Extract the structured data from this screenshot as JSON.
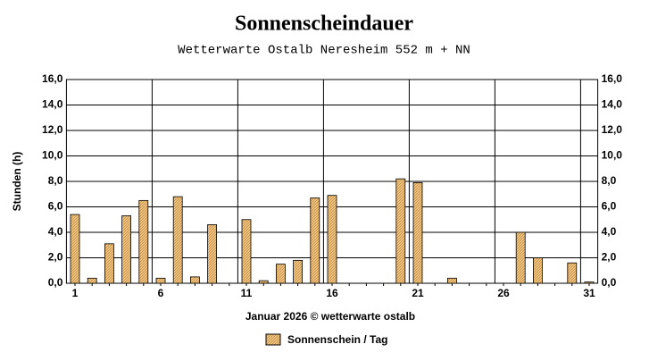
{
  "chart_data": {
    "type": "bar",
    "title": "Sonnenscheindauer",
    "subtitle": "Wetterwarte Ostalb Neresheim 552 m + NN",
    "y_label": "Stunden  (h)",
    "x_label": "Januar 2026   © wetterwarte ostalb",
    "categories": [
      "1",
      null,
      null,
      null,
      null,
      "6",
      null,
      null,
      null,
      null,
      "11",
      null,
      null,
      null,
      null,
      "16",
      null,
      null,
      null,
      null,
      "21",
      null,
      null,
      null,
      null,
      "26",
      null,
      null,
      null,
      null,
      "31"
    ],
    "series": [
      {
        "name": "Sonnenschein / Tag",
        "color": "#f5c77e",
        "values": [
          5.4,
          0.4,
          3.1,
          5.3,
          6.5,
          0.4,
          6.8,
          0.5,
          4.6,
          0,
          5.0,
          0.2,
          1.5,
          1.8,
          6.7,
          6.9,
          0,
          0,
          0,
          8.2,
          7.9,
          0,
          0.4,
          0,
          0,
          0,
          4.0,
          2.0,
          0,
          1.6,
          0.1
        ]
      }
    ],
    "ylim": [
      0,
      16
    ],
    "yticks": [
      {
        "value": 0,
        "label": "0,0"
      },
      {
        "value": 2,
        "label": "2,0"
      },
      {
        "value": 4,
        "label": "4,0"
      },
      {
        "value": 6,
        "label": "6,0"
      },
      {
        "value": 8,
        "label": "8,0"
      },
      {
        "value": 10,
        "label": "10,0"
      },
      {
        "value": 12,
        "label": "12,0"
      },
      {
        "value": 14,
        "label": "14,0"
      },
      {
        "value": 16,
        "label": "16,0"
      }
    ],
    "grid": true
  }
}
